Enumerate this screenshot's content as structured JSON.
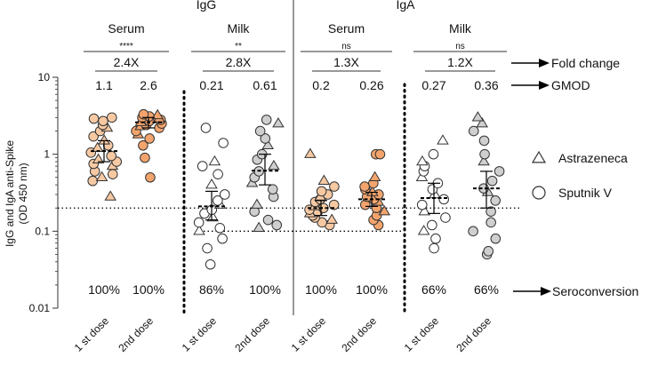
{
  "chart_data": {
    "type": "scatter",
    "y_scale": "log",
    "ylim": [
      0.01,
      10
    ],
    "ylabel_line1": "IgG and IgA  anti-Spike",
    "ylabel_line2": "(OD 450 nm)",
    "y_ticks": [
      {
        "value": 10,
        "label": "10"
      },
      {
        "value": 1,
        "label": "1"
      },
      {
        "value": 0.1,
        "label": "0.1"
      },
      {
        "value": 0.01,
        "label": "0.01"
      }
    ],
    "isotype_titles": [
      "IgG",
      "IgA"
    ],
    "sample_titles": [
      "Serum",
      "Milk",
      "Serum",
      "Milk"
    ],
    "significance": [
      "****",
      "**",
      "ns",
      "ns"
    ],
    "fold_change": [
      "2.4X",
      "2.8X",
      "1.3X",
      "1.2X"
    ],
    "groups": [
      {
        "label": "1 st dose",
        "gmod": "1.1",
        "seroconversion": "100%",
        "fill": "#f6c9a3",
        "geomean": 1.1,
        "ci": [
          0.8,
          1.5
        ],
        "points": [
          {
            "y": 0.28,
            "s": "t"
          },
          {
            "y": 0.45,
            "s": "c"
          },
          {
            "y": 0.5,
            "s": "t"
          },
          {
            "y": 0.55,
            "s": "c"
          },
          {
            "y": 0.6,
            "s": "c"
          },
          {
            "y": 0.7,
            "s": "t"
          },
          {
            "y": 0.75,
            "s": "c"
          },
          {
            "y": 0.8,
            "s": "c"
          },
          {
            "y": 0.85,
            "s": "t"
          },
          {
            "y": 0.95,
            "s": "c"
          },
          {
            "y": 1.05,
            "s": "c"
          },
          {
            "y": 1.2,
            "s": "t"
          },
          {
            "y": 1.3,
            "s": "c"
          },
          {
            "y": 1.5,
            "s": "t"
          },
          {
            "y": 1.7,
            "s": "c"
          },
          {
            "y": 2.0,
            "s": "c"
          },
          {
            "y": 2.2,
            "s": "t"
          },
          {
            "y": 2.4,
            "s": "c"
          },
          {
            "y": 2.7,
            "s": "c"
          },
          {
            "y": 2.9,
            "s": "c"
          },
          {
            "y": 3.0,
            "s": "c"
          }
        ]
      },
      {
        "label": "2nd dose",
        "gmod": "2.6",
        "seroconversion": "100%",
        "fill": "#f3a46d",
        "geomean": 2.6,
        "ci": [
          2.2,
          3.0
        ],
        "points": [
          {
            "y": 0.5,
            "s": "c"
          },
          {
            "y": 0.9,
            "s": "c"
          },
          {
            "y": 1.3,
            "s": "c"
          },
          {
            "y": 1.6,
            "s": "c"
          },
          {
            "y": 1.8,
            "s": "t"
          },
          {
            "y": 2.0,
            "s": "c"
          },
          {
            "y": 2.2,
            "s": "c"
          },
          {
            "y": 2.3,
            "s": "t"
          },
          {
            "y": 2.4,
            "s": "c"
          },
          {
            "y": 2.5,
            "s": "c"
          },
          {
            "y": 2.6,
            "s": "t"
          },
          {
            "y": 2.7,
            "s": "c"
          },
          {
            "y": 2.8,
            "s": "c"
          },
          {
            "y": 2.9,
            "s": "t"
          },
          {
            "y": 3.0,
            "s": "c"
          },
          {
            "y": 3.1,
            "s": "c"
          },
          {
            "y": 3.2,
            "s": "t"
          },
          {
            "y": 3.3,
            "s": "c"
          }
        ]
      },
      {
        "label": "1 st dose",
        "gmod": "0.21",
        "seroconversion": "86%",
        "fill": "#ffffff",
        "geomean": 0.21,
        "ci": [
          0.14,
          0.33
        ],
        "points": [
          {
            "y": 0.037,
            "s": "c"
          },
          {
            "y": 0.06,
            "s": "c"
          },
          {
            "y": 0.08,
            "s": "c"
          },
          {
            "y": 0.1,
            "s": "t"
          },
          {
            "y": 0.11,
            "s": "c"
          },
          {
            "y": 0.13,
            "s": "c"
          },
          {
            "y": 0.15,
            "s": "t"
          },
          {
            "y": 0.17,
            "s": "c"
          },
          {
            "y": 0.19,
            "s": "c"
          },
          {
            "y": 0.22,
            "s": "t"
          },
          {
            "y": 0.25,
            "s": "c"
          },
          {
            "y": 0.3,
            "s": "c"
          },
          {
            "y": 0.4,
            "s": "t"
          },
          {
            "y": 0.55,
            "s": "c"
          },
          {
            "y": 0.7,
            "s": "c"
          },
          {
            "y": 0.8,
            "s": "t"
          },
          {
            "y": 1.4,
            "s": "c"
          },
          {
            "y": 2.2,
            "s": "c"
          }
        ]
      },
      {
        "label": "2nd dose",
        "gmod": "0.61",
        "seroconversion": "100%",
        "fill": "#cfcfcf",
        "geomean": 0.61,
        "ci": [
          0.4,
          1.0
        ],
        "points": [
          {
            "y": 0.11,
            "s": "t"
          },
          {
            "y": 0.12,
            "s": "c"
          },
          {
            "y": 0.14,
            "s": "c"
          },
          {
            "y": 0.18,
            "s": "c"
          },
          {
            "y": 0.22,
            "s": "t"
          },
          {
            "y": 0.28,
            "s": "c"
          },
          {
            "y": 0.35,
            "s": "c"
          },
          {
            "y": 0.42,
            "s": "t"
          },
          {
            "y": 0.5,
            "s": "c"
          },
          {
            "y": 0.6,
            "s": "c"
          },
          {
            "y": 0.7,
            "s": "t"
          },
          {
            "y": 0.85,
            "s": "c"
          },
          {
            "y": 1.0,
            "s": "c"
          },
          {
            "y": 1.3,
            "s": "t"
          },
          {
            "y": 1.6,
            "s": "c"
          },
          {
            "y": 2.0,
            "s": "c"
          },
          {
            "y": 2.5,
            "s": "t"
          },
          {
            "y": 2.8,
            "s": "c"
          }
        ]
      },
      {
        "label": "1 st dose",
        "gmod": "0.2",
        "seroconversion": "100%",
        "fill": "#f6c9a3",
        "geomean": 0.2,
        "ci": [
          0.16,
          0.25
        ],
        "points": [
          {
            "y": 0.12,
            "s": "c"
          },
          {
            "y": 0.13,
            "s": "c"
          },
          {
            "y": 0.14,
            "s": "t"
          },
          {
            "y": 0.15,
            "s": "c"
          },
          {
            "y": 0.16,
            "s": "c"
          },
          {
            "y": 0.17,
            "s": "t"
          },
          {
            "y": 0.18,
            "s": "c"
          },
          {
            "y": 0.19,
            "s": "c"
          },
          {
            "y": 0.2,
            "s": "c"
          },
          {
            "y": 0.21,
            "s": "t"
          },
          {
            "y": 0.22,
            "s": "c"
          },
          {
            "y": 0.24,
            "s": "c"
          },
          {
            "y": 0.26,
            "s": "c"
          },
          {
            "y": 0.28,
            "s": "t"
          },
          {
            "y": 0.3,
            "s": "c"
          },
          {
            "y": 0.33,
            "s": "c"
          },
          {
            "y": 0.38,
            "s": "c"
          },
          {
            "y": 0.45,
            "s": "t"
          },
          {
            "y": 1.0,
            "s": "t"
          }
        ]
      },
      {
        "label": "2nd dose",
        "gmod": "0.26",
        "seroconversion": "100%",
        "fill": "#f3a46d",
        "geomean": 0.26,
        "ci": [
          0.21,
          0.32
        ],
        "points": [
          {
            "y": 0.12,
            "s": "c"
          },
          {
            "y": 0.14,
            "s": "c"
          },
          {
            "y": 0.16,
            "s": "c"
          },
          {
            "y": 0.18,
            "s": "t"
          },
          {
            "y": 0.2,
            "s": "c"
          },
          {
            "y": 0.22,
            "s": "c"
          },
          {
            "y": 0.24,
            "s": "t"
          },
          {
            "y": 0.26,
            "s": "c"
          },
          {
            "y": 0.28,
            "s": "c"
          },
          {
            "y": 0.3,
            "s": "c"
          },
          {
            "y": 0.32,
            "s": "t"
          },
          {
            "y": 0.35,
            "s": "c"
          },
          {
            "y": 0.38,
            "s": "c"
          },
          {
            "y": 0.42,
            "s": "c"
          },
          {
            "y": 0.5,
            "s": "t"
          },
          {
            "y": 1.0,
            "s": "c"
          },
          {
            "y": 1.0,
            "s": "c"
          }
        ]
      },
      {
        "label": "1 st dose",
        "gmod": "0.27",
        "seroconversion": "66%",
        "fill": "#ffffff",
        "geomean": 0.27,
        "ci": [
          0.17,
          0.42
        ],
        "points": [
          {
            "y": 0.06,
            "s": "c"
          },
          {
            "y": 0.08,
            "s": "c"
          },
          {
            "y": 0.1,
            "s": "t"
          },
          {
            "y": 0.12,
            "s": "c"
          },
          {
            "y": 0.15,
            "s": "c"
          },
          {
            "y": 0.18,
            "s": "t"
          },
          {
            "y": 0.22,
            "s": "c"
          },
          {
            "y": 0.26,
            "s": "c"
          },
          {
            "y": 0.3,
            "s": "t"
          },
          {
            "y": 0.35,
            "s": "c"
          },
          {
            "y": 0.42,
            "s": "c"
          },
          {
            "y": 0.5,
            "s": "t"
          },
          {
            "y": 0.6,
            "s": "c"
          },
          {
            "y": 0.7,
            "s": "c"
          },
          {
            "y": 0.8,
            "s": "t"
          },
          {
            "y": 1.0,
            "s": "c"
          },
          {
            "y": 1.5,
            "s": "t"
          }
        ]
      },
      {
        "label": "2nd dose",
        "gmod": "0.36",
        "seroconversion": "66%",
        "fill": "#cfcfcf",
        "geomean": 0.36,
        "ci": [
          0.2,
          0.6
        ],
        "points": [
          {
            "y": 0.05,
            "s": "c"
          },
          {
            "y": 0.055,
            "s": "c"
          },
          {
            "y": 0.08,
            "s": "c"
          },
          {
            "y": 0.1,
            "s": "c"
          },
          {
            "y": 0.13,
            "s": "c"
          },
          {
            "y": 0.18,
            "s": "c"
          },
          {
            "y": 0.25,
            "s": "c"
          },
          {
            "y": 0.32,
            "s": "t"
          },
          {
            "y": 0.36,
            "s": "c"
          },
          {
            "y": 0.45,
            "s": "c"
          },
          {
            "y": 0.6,
            "s": "c"
          },
          {
            "y": 0.8,
            "s": "t"
          },
          {
            "y": 1.0,
            "s": "c"
          },
          {
            "y": 1.5,
            "s": "c"
          },
          {
            "y": 2.0,
            "s": "c"
          },
          {
            "y": 2.5,
            "s": "t"
          },
          {
            "y": 3.0,
            "s": "t"
          }
        ]
      }
    ],
    "threshold_lines": [
      {
        "value": 0.2,
        "from_group": 0,
        "to_group": 7,
        "style": "dotted"
      },
      {
        "value": 0.1,
        "from_group": 2,
        "to_group": 5,
        "style": "dotted"
      }
    ],
    "legend": [
      {
        "symbol": "triangle",
        "label": "Astrazeneca"
      },
      {
        "symbol": "circle",
        "label": "Sputnik V"
      }
    ],
    "annotations": [
      "Fold change",
      "GMOD",
      "Seroconversion"
    ],
    "colors": {
      "stroke": "#333333",
      "text": "#111111"
    }
  }
}
